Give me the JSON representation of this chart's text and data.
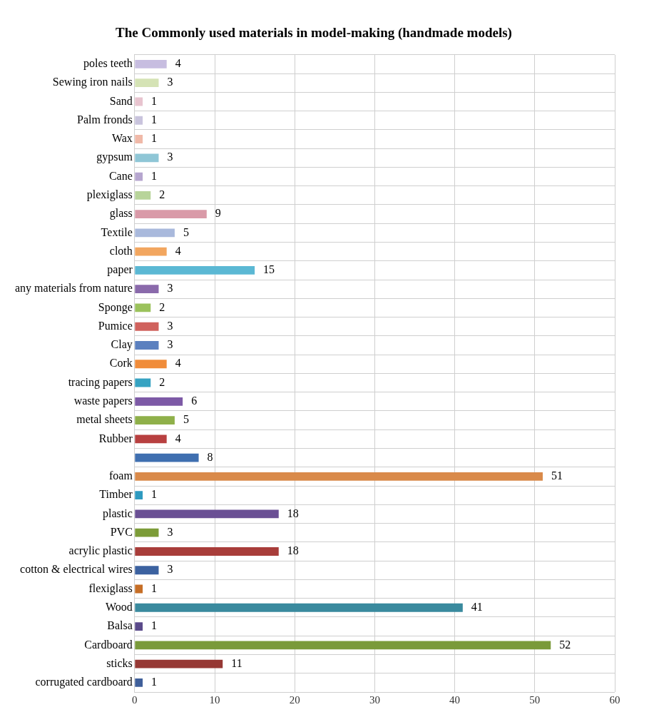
{
  "chart_data": {
    "type": "bar",
    "orientation": "horizontal",
    "title": "The Commonly used materials in model-making (handmade models)",
    "categories": [
      "poles teeth",
      "Sewing iron nails",
      "Sand",
      "Palm fronds",
      "Wax",
      "gypsum",
      "Cane",
      "plexiglass",
      "glass",
      "Textile",
      "cloth",
      "paper",
      "any materials from nature",
      "Sponge",
      "Pumice",
      "Clay",
      "Cork",
      "tracing papers",
      "waste papers",
      "metal sheets",
      "Rubber",
      null,
      "foam",
      "Timber",
      "plastic",
      "PVC",
      "acrylic plastic",
      "cotton & electrical wires",
      "flexiglass",
      "Wood",
      "Balsa",
      "Cardboard",
      "sticks",
      "corrugated cardboard"
    ],
    "values": [
      4,
      3,
      1,
      1,
      1,
      3,
      1,
      2,
      9,
      5,
      4,
      15,
      3,
      2,
      3,
      3,
      4,
      2,
      6,
      5,
      4,
      8,
      51,
      1,
      18,
      3,
      18,
      3,
      1,
      41,
      1,
      52,
      11,
      1
    ],
    "colors": [
      "#c7bde0",
      "#d5e3b5",
      "#e8c4cf",
      "#c9c4dd",
      "#f0b9a8",
      "#8fc6d6",
      "#b6a6cf",
      "#b8d49a",
      "#d99aa8",
      "#a9b9dc",
      "#f2a65f",
      "#5bb8d4",
      "#8a6aab",
      "#9bc25c",
      "#d0625d",
      "#5b80bf",
      "#f08c3a",
      "#36a3c2",
      "#7d5aa6",
      "#8fb04a",
      "#b84040",
      "#3f6fb0",
      "#d98a4a",
      "#2e9ac0",
      "#6a4f94",
      "#7c9c38",
      "#a83d3a",
      "#3c62a0",
      "#c66e26",
      "#3a8a9e",
      "#5a4a8a",
      "#7a9a3a",
      "#963834",
      "#3f5f9a"
    ],
    "xlim": [
      0,
      60
    ],
    "xticks": [
      0,
      10,
      20,
      30,
      40,
      50,
      60
    ],
    "grid": true,
    "legend": false,
    "data_labels": true
  }
}
